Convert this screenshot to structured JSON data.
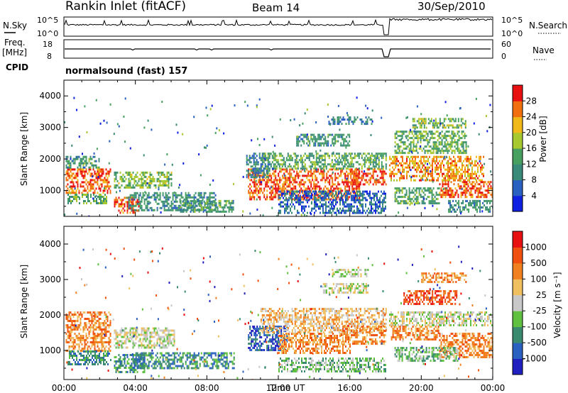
{
  "header": {
    "title": "Rankin Inlet (fitACF)",
    "beam": "Beam 14",
    "date": "30/Sep/2010"
  },
  "status_panels": {
    "nsky_label": "N.Sky",
    "nsky_ticks": [
      "10^5",
      "10^0"
    ],
    "nsearch_label": "N.Search",
    "nsearch_ticks": [
      "10^5",
      "10^0"
    ],
    "freq_label": "Freq.",
    "freq_unit": "[MHz]",
    "freq_ticks": [
      "18",
      "8"
    ],
    "nave_label": "Nave",
    "nave_ticks": [
      "60",
      "0"
    ],
    "cpid_label": "CPID",
    "cpid_value": "normalsound (fast) 157"
  },
  "chart_data": [
    {
      "type": "heatmap",
      "name": "power-panel",
      "ylabel": "Slant Range [km]",
      "yticks": [
        "1000",
        "2000",
        "3000",
        "4000"
      ],
      "ylim": [
        180,
        4500
      ],
      "xlim": [
        0,
        24
      ],
      "colorbar": {
        "label": "Power [dB]",
        "ticks": [
          "4",
          "8",
          "12",
          "16",
          "20",
          "24",
          "28"
        ],
        "range": [
          0,
          32
        ],
        "colors": [
          "#1020e0",
          "#2a60c0",
          "#3a8a7a",
          "#48a060",
          "#a8c830",
          "#f0b818",
          "#f07010",
          "#e81010"
        ]
      },
      "regions": [
        {
          "t0": 0.1,
          "t1": 2.6,
          "r0": 900,
          "r1": 1700,
          "level": 27
        },
        {
          "t0": 0.2,
          "t1": 2.4,
          "r0": 600,
          "r1": 900,
          "level": 14
        },
        {
          "t0": 0.1,
          "t1": 2.0,
          "r0": 1700,
          "r1": 2100,
          "level": 12
        },
        {
          "t0": 2.8,
          "t1": 6.0,
          "r0": 1100,
          "r1": 1600,
          "level": 16
        },
        {
          "t0": 2.8,
          "t1": 4.2,
          "r0": 300,
          "r1": 800,
          "level": 26
        },
        {
          "t0": 3.6,
          "t1": 8.5,
          "r0": 350,
          "r1": 950,
          "level": 11
        },
        {
          "t0": 6.5,
          "t1": 9.5,
          "r0": 300,
          "r1": 700,
          "level": 12
        },
        {
          "t0": 10.3,
          "t1": 16.5,
          "r0": 700,
          "r1": 1700,
          "level": 27
        },
        {
          "t0": 11.0,
          "t1": 18.0,
          "r0": 1700,
          "r1": 2200,
          "level": 14
        },
        {
          "t0": 10.2,
          "t1": 11.5,
          "r0": 1400,
          "r1": 2200,
          "level": 10
        },
        {
          "t0": 13.0,
          "t1": 16.0,
          "r0": 2400,
          "r1": 2800,
          "level": 12
        },
        {
          "t0": 14.8,
          "t1": 17.2,
          "r0": 3100,
          "r1": 3350,
          "level": 9
        },
        {
          "t0": 12.0,
          "t1": 18.0,
          "r0": 300,
          "r1": 1000,
          "level": 7
        },
        {
          "t0": 16.0,
          "t1": 18.0,
          "r0": 1200,
          "r1": 1700,
          "level": 28
        },
        {
          "t0": 18.2,
          "t1": 23.5,
          "r0": 1300,
          "r1": 2100,
          "level": 24
        },
        {
          "t0": 21.0,
          "t1": 24.0,
          "r0": 800,
          "r1": 1300,
          "level": 27
        },
        {
          "t0": 18.5,
          "t1": 21.0,
          "r0": 600,
          "r1": 1100,
          "level": 13
        },
        {
          "t0": 18.5,
          "t1": 22.5,
          "r0": 2200,
          "r1": 2900,
          "level": 15
        },
        {
          "t0": 19.5,
          "t1": 22.5,
          "r0": 3000,
          "r1": 3300,
          "level": 16
        },
        {
          "t0": 21.5,
          "t1": 24.0,
          "r0": 300,
          "r1": 700,
          "level": 11
        }
      ]
    },
    {
      "type": "heatmap",
      "name": "velocity-panel",
      "xlabel": "Time UT",
      "ylabel": "Slant Range [km]",
      "yticks": [
        "1000",
        "2000",
        "3000",
        "4000"
      ],
      "ylim": [
        180,
        4500
      ],
      "xlim": [
        0,
        24
      ],
      "xticks": [
        "00:00",
        "04:00",
        "08:00",
        "12:00",
        "16:00",
        "20:00",
        "00:00"
      ],
      "colorbar": {
        "label": "Velocity [m s⁻¹]",
        "ticks": [
          "1000",
          "500",
          "100",
          "25",
          "-25",
          "-100",
          "-500",
          "-1000"
        ],
        "colors": [
          "#2020c0",
          "#2a60c0",
          "#3a8a70",
          "#60c040",
          "#c8c8c8",
          "#f0c060",
          "#f08020",
          "#f05010",
          "#e81010"
        ]
      },
      "regions": [
        {
          "t0": 0.1,
          "t1": 2.6,
          "r0": 1000,
          "r1": 2100,
          "level": 6
        },
        {
          "t0": 0.2,
          "t1": 2.6,
          "r0": 600,
          "r1": 1000,
          "level": 2
        },
        {
          "t0": 2.8,
          "t1": 6.2,
          "r0": 1050,
          "r1": 1650,
          "level": 4
        },
        {
          "t0": 2.8,
          "t1": 4.5,
          "r0": 400,
          "r1": 900,
          "level": 2
        },
        {
          "t0": 4.0,
          "t1": 9.5,
          "r0": 500,
          "r1": 950,
          "level": 2
        },
        {
          "t0": 10.3,
          "t1": 12.5,
          "r0": 1000,
          "r1": 1700,
          "level": 1
        },
        {
          "t0": 12.0,
          "t1": 16.0,
          "r0": 900,
          "r1": 1500,
          "level": 6
        },
        {
          "t0": 11.0,
          "t1": 18.0,
          "r0": 1500,
          "r1": 2200,
          "level": 5
        },
        {
          "t0": 15.5,
          "t1": 18.0,
          "r0": 1200,
          "r1": 1700,
          "level": 6
        },
        {
          "t0": 18.2,
          "t1": 24.0,
          "r0": 1700,
          "r1": 2100,
          "level": 4
        },
        {
          "t0": 18.3,
          "t1": 21.0,
          "r0": 1300,
          "r1": 1700,
          "level": 6
        },
        {
          "t0": 19.0,
          "t1": 22.0,
          "r0": 2300,
          "r1": 2700,
          "level": 7
        },
        {
          "t0": 20.0,
          "t1": 22.5,
          "r0": 2900,
          "r1": 3200,
          "level": 6
        },
        {
          "t0": 21.0,
          "t1": 24.0,
          "r0": 800,
          "r1": 1500,
          "level": 6
        },
        {
          "t0": 18.5,
          "t1": 22.0,
          "r0": 700,
          "r1": 1100,
          "level": 3
        },
        {
          "t0": 12.0,
          "t1": 18.0,
          "r0": 400,
          "r1": 800,
          "level": 3
        },
        {
          "t0": 14.5,
          "t1": 17.0,
          "r0": 2600,
          "r1": 2900,
          "level": 4
        },
        {
          "t0": 15.0,
          "t1": 17.0,
          "r0": 3100,
          "r1": 3300,
          "level": 4
        }
      ]
    }
  ]
}
